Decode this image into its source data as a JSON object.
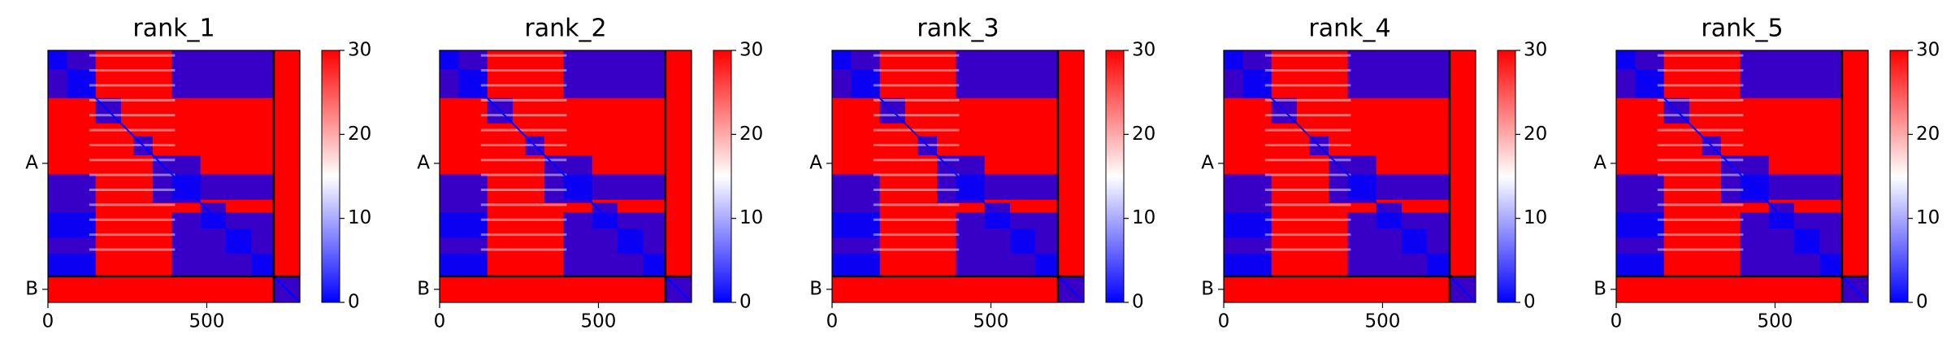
{
  "chart_data": [
    {
      "type": "heatmap",
      "title": "rank_1",
      "x_ticks": [
        "0",
        "500"
      ],
      "y_ticks": [
        "A",
        "B"
      ],
      "chains": [
        "A",
        "B"
      ],
      "chain_lengths": [
        711,
        82
      ],
      "cmap": "bwr",
      "clim": [
        0,
        30
      ],
      "colorbar_ticks": [
        "0",
        "10",
        "20",
        "30"
      ]
    },
    {
      "type": "heatmap",
      "title": "rank_2",
      "x_ticks": [
        "0",
        "500"
      ],
      "y_ticks": [
        "A",
        "B"
      ],
      "chains": [
        "A",
        "B"
      ],
      "chain_lengths": [
        711,
        82
      ],
      "cmap": "bwr",
      "clim": [
        0,
        30
      ],
      "colorbar_ticks": [
        "0",
        "10",
        "20",
        "30"
      ]
    },
    {
      "type": "heatmap",
      "title": "rank_3",
      "x_ticks": [
        "0",
        "500"
      ],
      "y_ticks": [
        "A",
        "B"
      ],
      "chains": [
        "A",
        "B"
      ],
      "chain_lengths": [
        711,
        82
      ],
      "cmap": "bwr",
      "clim": [
        0,
        30
      ],
      "colorbar_ticks": [
        "0",
        "10",
        "20",
        "30"
      ]
    },
    {
      "type": "heatmap",
      "title": "rank_4",
      "x_ticks": [
        "0",
        "500"
      ],
      "y_ticks": [
        "A",
        "B"
      ],
      "chains": [
        "A",
        "B"
      ],
      "chain_lengths": [
        711,
        82
      ],
      "cmap": "bwr",
      "clim": [
        0,
        30
      ],
      "colorbar_ticks": [
        "0",
        "10",
        "20",
        "30"
      ]
    },
    {
      "type": "heatmap",
      "title": "rank_5",
      "x_ticks": [
        "0",
        "500"
      ],
      "y_ticks": [
        "A",
        "B"
      ],
      "chains": [
        "A",
        "B"
      ],
      "chain_lengths": [
        711,
        82
      ],
      "cmap": "bwr",
      "clim": [
        0,
        30
      ],
      "colorbar_ticks": [
        "0",
        "10",
        "20",
        "30"
      ]
    }
  ],
  "colors": {
    "low": "#0000ff",
    "mid": "#ffffff",
    "high": "#ff0000",
    "divider": "#000000"
  }
}
